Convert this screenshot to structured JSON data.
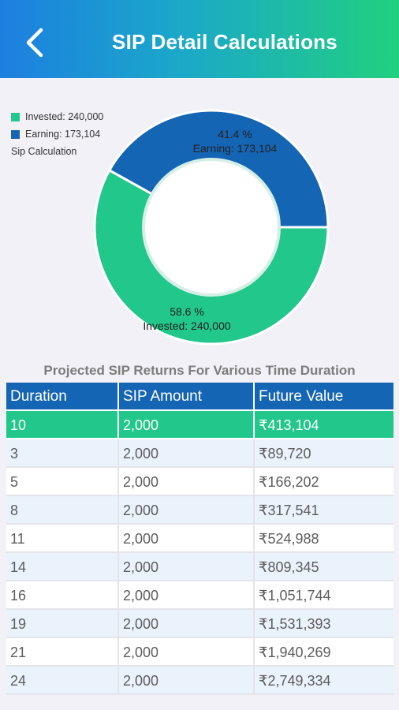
{
  "header": {
    "title": "SIP Detail Calculations",
    "back_icon": "chevron-left-icon"
  },
  "legend": {
    "items": [
      {
        "label": "Invested: 240,000",
        "color": "#21c78b"
      },
      {
        "label": "Earning: 173,104",
        "color": "#1565b5"
      }
    ],
    "caption": "Sip Calculation"
  },
  "chart_data": {
    "type": "pie",
    "subtype": "donut",
    "title": "Sip Calculation",
    "slices": [
      {
        "name": "Earning",
        "value": 173104,
        "percent_label": "41.4 %",
        "label": "Earning: 173,104",
        "color": "#1565b5"
      },
      {
        "name": "Invested",
        "value": 240000,
        "percent_label": "58.6 %",
        "label": "Invested: 240,000",
        "color": "#21c78b"
      }
    ],
    "legend_position": "top-left"
  },
  "table": {
    "title": "Projected SIP Returns For Various Time Duration",
    "columns": [
      "Duration",
      "SIP Amount",
      "Future Value"
    ],
    "rows": [
      {
        "duration": "10",
        "sip": "2,000",
        "future": "₹413,104",
        "highlight": true
      },
      {
        "duration": "3",
        "sip": "2,000",
        "future": "₹89,720"
      },
      {
        "duration": "5",
        "sip": "2,000",
        "future": "₹166,202"
      },
      {
        "duration": "8",
        "sip": "2,000",
        "future": "₹317,541"
      },
      {
        "duration": "11",
        "sip": "2,000",
        "future": "₹524,988"
      },
      {
        "duration": "14",
        "sip": "2,000",
        "future": "₹809,345"
      },
      {
        "duration": "16",
        "sip": "2,000",
        "future": "₹1,051,744"
      },
      {
        "duration": "19",
        "sip": "2,000",
        "future": "₹1,531,393"
      },
      {
        "duration": "21",
        "sip": "2,000",
        "future": "₹1,940,269"
      },
      {
        "duration": "24",
        "sip": "2,000",
        "future": "₹2,749,334"
      }
    ],
    "colors": {
      "header": "#1565b5",
      "highlight": "#21c78b",
      "alt_row": "#eaf2fb"
    }
  }
}
